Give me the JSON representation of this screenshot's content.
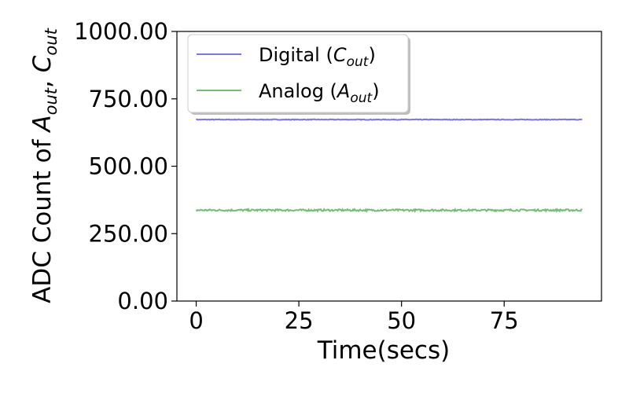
{
  "chart_data": {
    "type": "line",
    "title": "",
    "xlabel": "Time(secs)",
    "ylabel": {
      "prefix": "ADC Count of ",
      "a_var": "A",
      "a_sub": "out",
      "sep": ", ",
      "c_var": "C",
      "c_sub": "out"
    },
    "xlim": [
      -4.7,
      98.7
    ],
    "ylim": [
      0,
      1000
    ],
    "xticks": [
      0,
      25,
      50,
      75
    ],
    "xtick_labels": [
      "0",
      "25",
      "50",
      "75"
    ],
    "yticks": [
      0,
      250,
      500,
      750,
      1000
    ],
    "ytick_labels": [
      "0.00",
      "250.00",
      "500.00",
      "750.00",
      "1000.00"
    ],
    "grid": false,
    "legend_position": "top-left",
    "series": [
      {
        "name": "Digital (C_out)",
        "legend": {
          "prefix": "Digital (",
          "var": "C",
          "sub": "out",
          "suffix": ")"
        },
        "color": "#7777dd",
        "x_start": 0,
        "x_end": 94,
        "mean": 673,
        "noise": 1.2
      },
      {
        "name": "Analog (A_out)",
        "legend": {
          "prefix": "Analog (",
          "var": "A",
          "sub": "out",
          "suffix": ")"
        },
        "color": "#77bb77",
        "x_start": 0,
        "x_end": 94,
        "mean": 337,
        "noise": 3.5
      }
    ]
  }
}
